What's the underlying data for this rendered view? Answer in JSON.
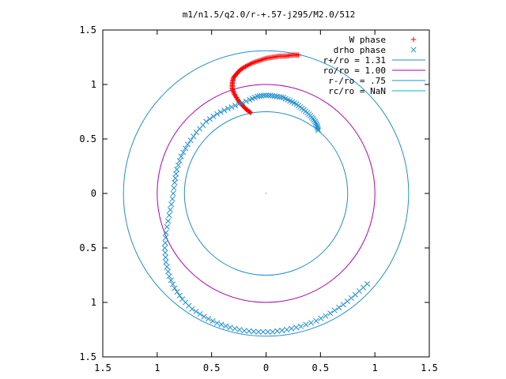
{
  "chart_data": {
    "type": "scatter",
    "title": "m1/n1.5/q2.0/r-+.57-j295/M2.0/512",
    "xlim": [
      -1.5,
      1.5
    ],
    "ylim": [
      -1.5,
      1.5
    ],
    "x_ticks": [
      -1.5,
      -1,
      -0.5,
      0,
      0.5,
      1,
      1.5
    ],
    "y_ticks": [
      -1.5,
      -1,
      -0.5,
      0,
      0.5,
      1,
      1.5
    ],
    "x_tick_labels": [
      "1.5",
      "1",
      "0.5",
      "0",
      "0.5",
      "1",
      "1.5"
    ],
    "y_tick_labels": [
      "1.5",
      "1",
      "0.5",
      "0",
      "0.5",
      "1",
      "1.5"
    ],
    "grid": false,
    "legend_position": "top-right",
    "circles": [
      {
        "name": "r+/ro = 1.31",
        "radius": 1.31,
        "color": "#1f8fd0"
      },
      {
        "name": "ro/ro = 1.00",
        "radius": 1.0,
        "color": "#b000b0"
      },
      {
        "name": "r-/ro = .75",
        "radius": 0.75,
        "color": "#1f8fd0"
      },
      {
        "name": "rc/ro = NaN",
        "radius": null,
        "color": "#00b4c8"
      }
    ],
    "series": [
      {
        "name": "W phase",
        "marker": "plus",
        "color": "#ff0000",
        "points": [
          [
            -0.14,
            0.74
          ],
          [
            -0.18,
            0.77
          ],
          [
            -0.22,
            0.81
          ],
          [
            -0.26,
            0.86
          ],
          [
            -0.29,
            0.91
          ],
          [
            -0.31,
            0.96
          ],
          [
            -0.31,
            1.01
          ],
          [
            -0.3,
            1.06
          ],
          [
            -0.27,
            1.1
          ],
          [
            -0.23,
            1.14
          ],
          [
            -0.18,
            1.17
          ],
          [
            -0.12,
            1.2
          ],
          [
            -0.06,
            1.22
          ],
          [
            0.0,
            1.24
          ],
          [
            0.06,
            1.25
          ],
          [
            0.12,
            1.26
          ],
          [
            0.18,
            1.26
          ],
          [
            0.24,
            1.27
          ],
          [
            0.3,
            1.27
          ]
        ]
      },
      {
        "name": "drho phase",
        "marker": "cross",
        "color": "#1f8fd0",
        "points": [
          [
            0.48,
            0.58
          ],
          [
            0.47,
            0.62
          ],
          [
            0.45,
            0.66
          ],
          [
            0.42,
            0.7
          ],
          [
            0.38,
            0.74
          ],
          [
            0.33,
            0.78
          ],
          [
            0.28,
            0.82
          ],
          [
            0.22,
            0.85
          ],
          [
            0.16,
            0.88
          ],
          [
            0.1,
            0.89
          ],
          [
            0.04,
            0.9
          ],
          [
            -0.02,
            0.9
          ],
          [
            -0.08,
            0.89
          ],
          [
            -0.15,
            0.86
          ],
          [
            -0.25,
            0.82
          ],
          [
            -0.35,
            0.78
          ],
          [
            -0.45,
            0.73
          ],
          [
            -0.55,
            0.66
          ],
          [
            -0.64,
            0.56
          ],
          [
            -0.72,
            0.45
          ],
          [
            -0.78,
            0.34
          ],
          [
            -0.82,
            0.22
          ],
          [
            -0.84,
            0.1
          ],
          [
            -0.86,
            -0.05
          ],
          [
            -0.89,
            -0.2
          ],
          [
            -0.92,
            -0.36
          ],
          [
            -0.93,
            -0.5
          ],
          [
            -0.92,
            -0.63
          ],
          [
            -0.89,
            -0.76
          ],
          [
            -0.84,
            -0.87
          ],
          [
            -0.77,
            -0.97
          ],
          [
            -0.68,
            -1.06
          ],
          [
            -0.57,
            -1.13
          ],
          [
            -0.45,
            -1.19
          ],
          [
            -0.33,
            -1.23
          ],
          [
            -0.2,
            -1.26
          ],
          [
            -0.07,
            -1.27
          ],
          [
            0.06,
            -1.27
          ],
          [
            0.19,
            -1.25
          ],
          [
            0.32,
            -1.22
          ],
          [
            0.46,
            -1.17
          ],
          [
            0.59,
            -1.1
          ],
          [
            0.71,
            -1.02
          ],
          [
            0.82,
            -0.93
          ],
          [
            0.93,
            -0.83
          ]
        ]
      }
    ]
  }
}
